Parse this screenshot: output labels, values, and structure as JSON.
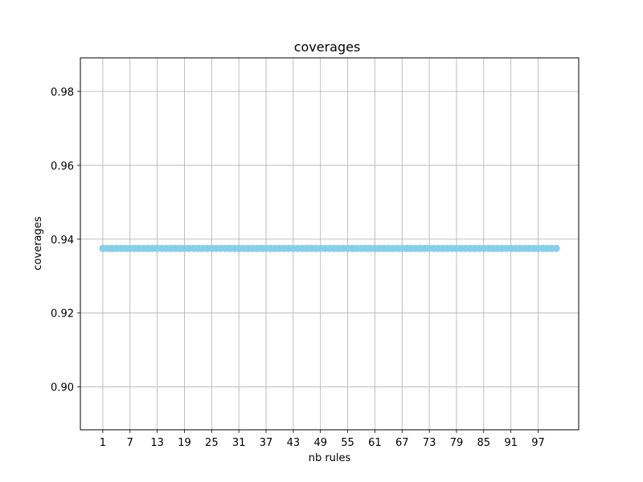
{
  "chart_data": {
    "type": "scatter",
    "title": "coverages",
    "xlabel": "nb rules",
    "ylabel": "coverages",
    "xlim": [
      -3.95,
      105.95
    ],
    "ylim": [
      0.8884,
      0.9891
    ],
    "xticks": [
      1,
      7,
      13,
      19,
      25,
      31,
      37,
      43,
      49,
      55,
      61,
      67,
      73,
      79,
      85,
      91,
      97
    ],
    "yticks": [
      0.9,
      0.92,
      0.94,
      0.96,
      0.98
    ],
    "ytick_labels": [
      "0.90",
      "0.92",
      "0.94",
      "0.96",
      "0.98"
    ],
    "grid": true,
    "marker_color": "#87ceeb",
    "x_start": 1,
    "x_end": 101,
    "y_value": 0.9375
  }
}
